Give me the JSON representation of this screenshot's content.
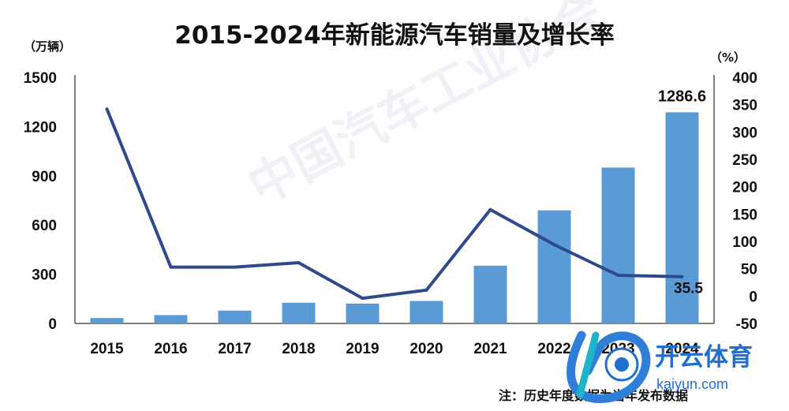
{
  "chart_data": {
    "type": "bar",
    "title": "2015-2024年新能源汽车销量及增长率",
    "categories": [
      "2015",
      "2016",
      "2017",
      "2018",
      "2019",
      "2020",
      "2021",
      "2022",
      "2023",
      "2024"
    ],
    "series": [
      {
        "values": [
          33,
          51,
          78,
          126,
          121,
          137,
          352,
          689,
          950,
          1286.6
        ]
      },
      {
        "values": [
          342,
          53,
          53,
          61,
          -4,
          11,
          158,
          94,
          38,
          35.5
        ]
      }
    ],
    "y_left": {
      "unit": "（万辆）",
      "ylim": [
        0,
        1500
      ],
      "ticks": [
        0,
        300,
        600,
        900,
        1200,
        1500
      ]
    },
    "y_right": {
      "unit": "（%）",
      "ylim": [
        -50,
        400
      ],
      "ticks": [
        -50,
        0,
        50,
        100,
        150,
        200,
        250,
        300,
        350,
        400
      ]
    },
    "data_labels": {
      "bar_2024": "1286.6",
      "line_2024": "35.5"
    },
    "grid": false,
    "legend": "none",
    "colors": {
      "bar": "#5B9BD5",
      "line": "#2F4A8C"
    }
  },
  "note": "注：历史年度数据为当年发布数据",
  "watermark": {
    "brand_cn": "开云体育",
    "brand_url": "kaiyun.com",
    "org_cn": "中国汽车工业协会"
  }
}
